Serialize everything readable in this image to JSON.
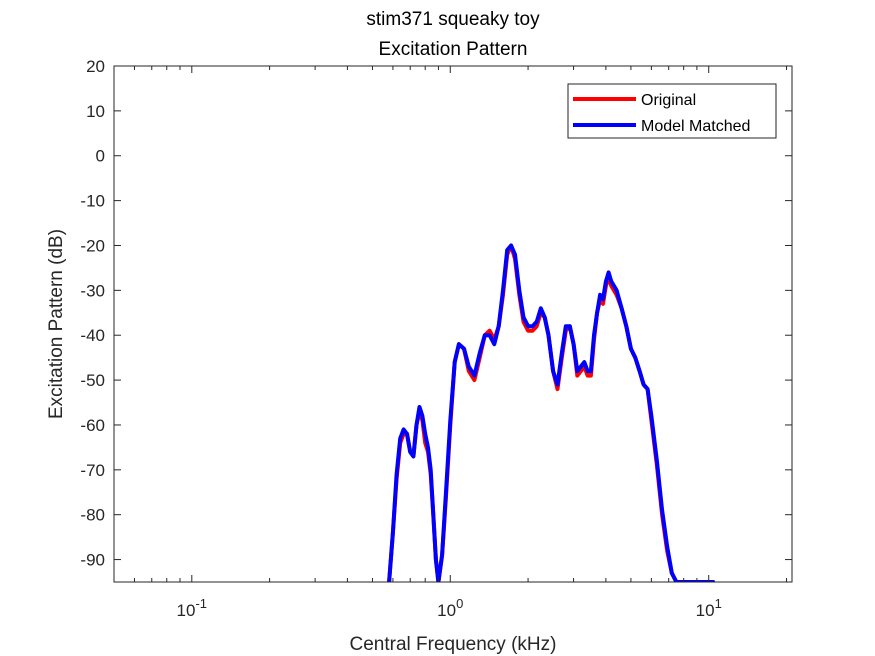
{
  "chart_data": {
    "type": "line",
    "title": "stim371 squeaky toy",
    "subtitle": "Excitation Pattern",
    "xlabel": "Central Frequency (kHz)",
    "ylabel": "Excitation Pattern (dB)",
    "xscale": "log",
    "xlim": [
      0.05,
      21
    ],
    "ylim": [
      -95,
      20
    ],
    "yticks": [
      20,
      10,
      0,
      -10,
      -20,
      -30,
      -40,
      -50,
      -60,
      -70,
      -80,
      -90
    ],
    "ytick_labels": [
      "20",
      "10",
      "0",
      "-10",
      "-20",
      "-30",
      "-40",
      "-50",
      "-60",
      "-70",
      "-80",
      "-90"
    ],
    "xticks": [
      {
        "value": 0.1,
        "base": "10",
        "exp": "-1"
      },
      {
        "value": 1,
        "base": "10",
        "exp": "0"
      },
      {
        "value": 10,
        "base": "10",
        "exp": "1"
      }
    ],
    "grid": false,
    "legend_position": "top-right",
    "series": [
      {
        "name": "Original",
        "color": "#ff0000",
        "x": [
          0.58,
          0.6,
          0.62,
          0.64,
          0.66,
          0.68,
          0.7,
          0.72,
          0.74,
          0.76,
          0.78,
          0.8,
          0.82,
          0.84,
          0.86,
          0.88,
          0.9,
          0.93,
          0.96,
          1.0,
          1.04,
          1.08,
          1.13,
          1.18,
          1.24,
          1.3,
          1.36,
          1.42,
          1.48,
          1.54,
          1.6,
          1.66,
          1.72,
          1.78,
          1.85,
          1.92,
          2.0,
          2.08,
          2.16,
          2.24,
          2.32,
          2.4,
          2.5,
          2.6,
          2.7,
          2.8,
          2.9,
          3.0,
          3.1,
          3.2,
          3.3,
          3.4,
          3.5,
          3.6,
          3.7,
          3.8,
          3.9,
          4.0,
          4.1,
          4.2,
          4.4,
          4.6,
          4.8,
          5.0,
          5.2,
          5.4,
          5.6,
          5.8,
          6.0,
          6.3,
          6.6,
          6.9,
          7.2,
          7.5,
          7.8,
          8.1,
          8.4,
          8.8,
          9.2,
          9.6,
          10.0,
          10.4
        ],
        "y": [
          -95,
          -84,
          -72,
          -64,
          -62,
          -62,
          -66,
          -67,
          -60,
          -57,
          -59,
          -64,
          -66,
          -71,
          -80,
          -90,
          -95,
          -89,
          -77,
          -60,
          -46,
          -42,
          -43,
          -48,
          -50,
          -45,
          -40,
          -39,
          -41,
          -38,
          -31,
          -22,
          -20,
          -23,
          -31,
          -37,
          -39,
          -39,
          -38,
          -35,
          -36,
          -40,
          -48,
          -52,
          -45,
          -39,
          -38,
          -42,
          -49,
          -48,
          -47,
          -49,
          -49,
          -41,
          -35,
          -32,
          -33,
          -29,
          -27,
          -29,
          -31,
          -34,
          -38,
          -43,
          -45,
          -48,
          -51,
          -52,
          -59,
          -69,
          -80,
          -88,
          -93,
          -95,
          -95,
          -95,
          -95,
          -95,
          -95,
          -95,
          -95,
          -95
        ]
      },
      {
        "name": "Model Matched",
        "color": "#0000ff",
        "x": [
          0.58,
          0.6,
          0.62,
          0.64,
          0.66,
          0.68,
          0.7,
          0.72,
          0.74,
          0.76,
          0.78,
          0.8,
          0.82,
          0.84,
          0.86,
          0.88,
          0.9,
          0.93,
          0.96,
          1.0,
          1.04,
          1.08,
          1.13,
          1.18,
          1.24,
          1.3,
          1.36,
          1.42,
          1.48,
          1.54,
          1.6,
          1.66,
          1.72,
          1.78,
          1.85,
          1.92,
          2.0,
          2.08,
          2.16,
          2.24,
          2.32,
          2.4,
          2.5,
          2.6,
          2.7,
          2.8,
          2.9,
          3.0,
          3.1,
          3.2,
          3.3,
          3.4,
          3.5,
          3.6,
          3.7,
          3.8,
          3.9,
          4.0,
          4.1,
          4.2,
          4.4,
          4.6,
          4.8,
          5.0,
          5.2,
          5.4,
          5.6,
          5.8,
          6.0,
          6.3,
          6.6,
          6.9,
          7.2,
          7.5,
          7.8,
          8.1,
          8.4,
          8.8,
          9.2,
          9.6,
          10.0,
          10.4
        ],
        "y": [
          -95,
          -84,
          -71,
          -63,
          -61,
          -62,
          -66,
          -67,
          -60,
          -56,
          -58,
          -62,
          -65,
          -70,
          -80,
          -90,
          -95,
          -89,
          -76,
          -59,
          -46,
          -42,
          -43,
          -47,
          -49,
          -44,
          -40,
          -40,
          -42,
          -38,
          -30,
          -21,
          -20,
          -22,
          -30,
          -36,
          -38,
          -38,
          -37,
          -34,
          -36,
          -40,
          -48,
          -51,
          -44,
          -38,
          -38,
          -42,
          -48,
          -47,
          -46,
          -48,
          -48,
          -40,
          -35,
          -31,
          -32,
          -28,
          -26,
          -28,
          -30,
          -34,
          -38,
          -43,
          -45,
          -48,
          -51,
          -52,
          -58,
          -68,
          -79,
          -87,
          -93,
          -95,
          -95,
          -95,
          -95,
          -95,
          -95,
          -95,
          -95,
          -95
        ]
      }
    ]
  }
}
